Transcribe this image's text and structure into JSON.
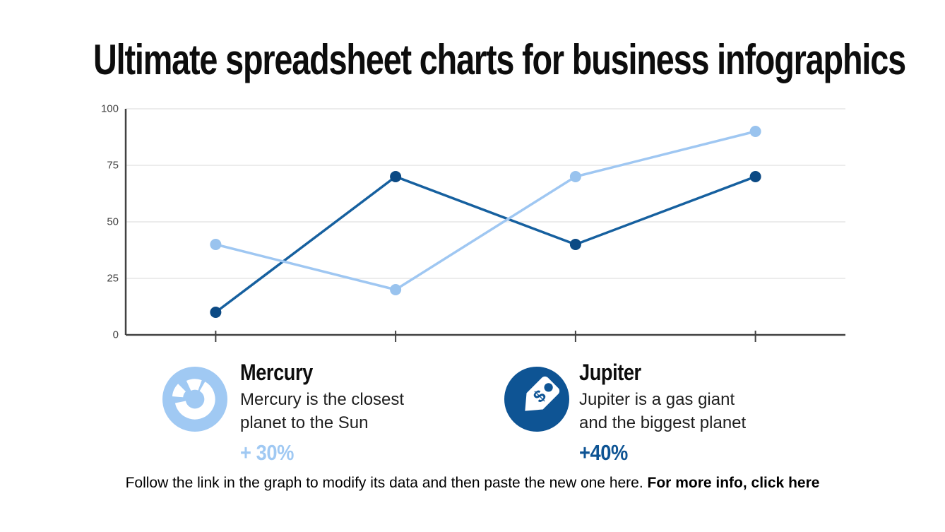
{
  "title": "Ultimate spreadsheet charts for business infographics",
  "chart_data": {
    "type": "line",
    "categories": [
      "",
      "",
      "",
      ""
    ],
    "series": [
      {
        "name": "Mercury",
        "values": [
          40,
          20,
          70,
          90
        ],
        "line_color": "#9FC7F2",
        "point_color": "#99C3EE"
      },
      {
        "name": "Jupiter",
        "values": [
          10,
          70,
          40,
          70
        ],
        "line_color": "#16609F",
        "point_color": "#0C4A84"
      }
    ],
    "title": "",
    "xlabel": "",
    "ylabel": "",
    "ylim": [
      0,
      100
    ],
    "yticks": [
      0,
      25,
      50,
      75,
      100
    ],
    "grid": true,
    "grid_color": "#E6E6E6",
    "axis_color": "#424242",
    "legend_position": "bottom"
  },
  "legend": [
    {
      "name": "Mercury",
      "description": "Mercury is the closest\nplanet to the Sun",
      "delta": "+ 30%",
      "icon": "donut-chart-icon",
      "color": "#A0C9F3"
    },
    {
      "name": "Jupiter",
      "description": "Jupiter is a gas giant\nand the biggest planet",
      "delta": "+40%",
      "icon": "price-tag-icon",
      "icon_glyph": "$",
      "color": "#0E5494"
    }
  ],
  "footer": {
    "text": "Follow the link in the graph to modify its data and then paste the new one here.",
    "link_text": "For more info, click here"
  }
}
